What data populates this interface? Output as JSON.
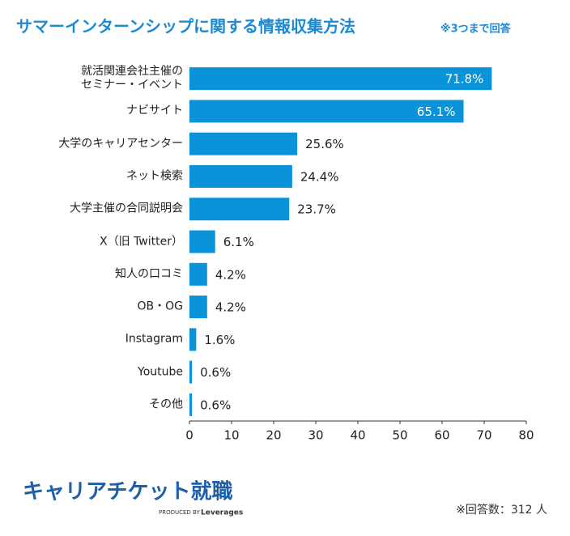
{
  "chart_data": {
    "type": "bar",
    "orientation": "horizontal",
    "title": "サマーインターンシップに関する情報収集方法",
    "subtitle": "※3つまで回答",
    "categories": [
      "就活関連会社主催の\nセミナー・イベント",
      "ナビサイト",
      "大学のキャリアセンター",
      "ネット検索",
      "大学主催の合同説明会",
      "X（旧 Twitter）",
      "知人の口コミ",
      "OB・OG",
      "Instagram",
      "Youtube",
      "その他"
    ],
    "values": [
      71.8,
      65.1,
      25.6,
      24.4,
      23.7,
      6.1,
      4.2,
      4.2,
      1.6,
      0.6,
      0.6
    ],
    "value_labels": [
      "71.8%",
      "65.1%",
      "25.6%",
      "24.4%",
      "23.7%",
      "6.1%",
      "4.2%",
      "4.2%",
      "1.6%",
      "0.6%",
      "0.6%"
    ],
    "color": "#0b93da",
    "xlim": [
      0,
      80
    ],
    "xticks": [
      0,
      10,
      20,
      30,
      40,
      50,
      60,
      70,
      80
    ],
    "note": "※回答数：312 人"
  },
  "footer": {
    "logo": "キャリアチケット就職",
    "produced_by": "PRODUCED BY",
    "brand": "Leverages"
  }
}
